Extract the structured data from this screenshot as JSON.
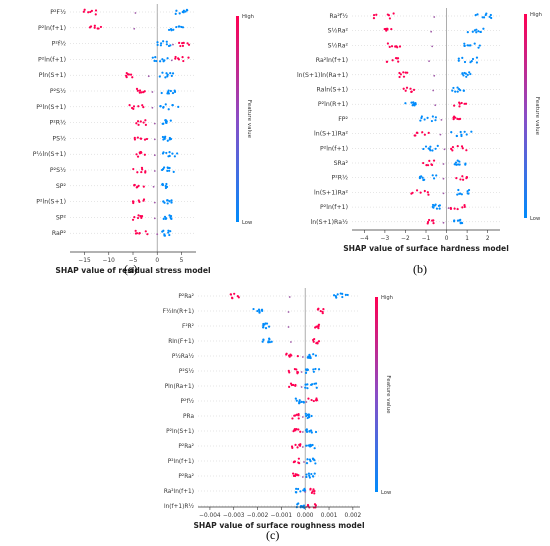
{
  "colors": {
    "high": "#ff0052",
    "low": "#008bfb"
  },
  "chart_data": [
    {
      "type": "scatter",
      "subtype": "shap-beeswarm",
      "panel_label": "(a)",
      "xlabel": "SHAP value of residual stress model",
      "colorbar": {
        "label": "Feature value",
        "high": "High",
        "low": "Low"
      },
      "xlim": [
        -18,
        8
      ],
      "xticks": [
        -15,
        -10,
        -5,
        0,
        5
      ],
      "features": [
        {
          "name": "P²F½",
          "low_range": [
            3.5,
            7.5
          ],
          "high_range": [
            -15.5,
            -12.5
          ]
        },
        {
          "name": "P²ln(f+1)",
          "low_range": [
            2,
            7.5
          ],
          "high_range": [
            -14,
            -11.5
          ]
        },
        {
          "name": "P²f½",
          "low_range": [
            -1,
            3
          ],
          "high_range": [
            4.5,
            7.5
          ]
        },
        {
          "name": "P²ln(f+1)",
          "low_range": [
            -1,
            2.5
          ],
          "high_range": [
            3.5,
            7
          ]
        },
        {
          "name": "Pln(S+1)",
          "low_range": [
            0.5,
            4
          ],
          "high_range": [
            -6.5,
            -4
          ]
        },
        {
          "name": "P²S½",
          "low_range": [
            0.5,
            4
          ],
          "high_range": [
            -5.5,
            -2.5
          ]
        },
        {
          "name": "P²ln(S+1)",
          "low_range": [
            0.5,
            4.5
          ],
          "high_range": [
            -6,
            -2.5
          ]
        },
        {
          "name": "P²R½",
          "low_range": [
            1,
            3
          ],
          "high_range": [
            -5,
            -2
          ]
        },
        {
          "name": "PS½",
          "low_range": [
            1,
            3
          ],
          "high_range": [
            -5,
            -2
          ]
        },
        {
          "name": "P½ln(S+1)",
          "low_range": [
            1,
            4.5
          ],
          "high_range": [
            -5,
            -2
          ]
        },
        {
          "name": "P²S½",
          "low_range": [
            1,
            3.5
          ],
          "high_range": [
            -5,
            -2
          ]
        },
        {
          "name": "SP²",
          "low_range": [
            1,
            2.5
          ],
          "high_range": [
            -5,
            -2.5
          ]
        },
        {
          "name": "P²ln(S+1)",
          "low_range": [
            1,
            3.5
          ],
          "high_range": [
            -5,
            -2
          ]
        },
        {
          "name": "SP²",
          "low_range": [
            1,
            3
          ],
          "high_range": [
            -5,
            -2
          ]
        },
        {
          "name": "RaP²",
          "low_range": [
            1,
            3
          ],
          "high_range": [
            -4.5,
            -1
          ]
        }
      ]
    },
    {
      "type": "scatter",
      "subtype": "shap-beeswarm",
      "panel_label": "(b)",
      "xlabel": "SHAP value of surface hardness model",
      "colorbar": {
        "label": "Feature value",
        "high": "High",
        "low": "Low"
      },
      "xlim": [
        -4.6,
        2.6
      ],
      "xticks": [
        -4,
        -3,
        -2,
        -1,
        0,
        1,
        2
      ],
      "features": [
        {
          "name": "Ra²f½",
          "low_range": [
            1.3,
            2.2
          ],
          "high_range": [
            -4,
            -2.5
          ]
        },
        {
          "name": "S½Ra²",
          "low_range": [
            1,
            1.8
          ],
          "high_range": [
            -3.1,
            -2.5
          ]
        },
        {
          "name": "S½Ra²",
          "low_range": [
            0.8,
            1.7
          ],
          "high_range": [
            -2.9,
            -2.2
          ]
        },
        {
          "name": "Ra²ln(f+1)",
          "low_range": [
            0.5,
            1.5
          ],
          "high_range": [
            -3,
            -2.2
          ]
        },
        {
          "name": "ln(S+1)ln(Ra+1)",
          "low_range": [
            0.7,
            1.3
          ],
          "high_range": [
            -2.4,
            -1.9
          ]
        },
        {
          "name": "Raln(S+1)",
          "low_range": [
            0.2,
            1
          ],
          "high_range": [
            -2.1,
            -1.5
          ]
        },
        {
          "name": "P²ln(R+1)",
          "low_range": [
            -2.1,
            -1.4
          ],
          "high_range": [
            0.3,
            1
          ]
        },
        {
          "name": "FP²",
          "low_range": [
            -1.3,
            -0.5
          ],
          "high_range": [
            0.2,
            0.8
          ]
        },
        {
          "name": "ln(S+1)Ra²",
          "low_range": [
            0.2,
            1.3
          ],
          "high_range": [
            -1.6,
            -0.8
          ]
        },
        {
          "name": "P²ln(f+1)",
          "low_range": [
            -1.2,
            -0.4
          ],
          "high_range": [
            0.2,
            1
          ]
        },
        {
          "name": "SRa²",
          "low_range": [
            0.3,
            1
          ],
          "high_range": [
            -1.3,
            -0.6
          ]
        },
        {
          "name": "P²R½",
          "low_range": [
            -1.3,
            -0.4
          ],
          "high_range": [
            0.3,
            1
          ]
        },
        {
          "name": "ln(S+1)Ra²",
          "low_range": [
            0.5,
            1.2
          ],
          "high_range": [
            -1.8,
            -0.8
          ]
        },
        {
          "name": "P²ln(f+1)",
          "low_range": [
            -0.7,
            -0.3
          ],
          "high_range": [
            0.2,
            0.9
          ]
        },
        {
          "name": "ln(S+1)Ra½",
          "low_range": [
            0.3,
            0.8
          ],
          "high_range": [
            -1.1,
            -0.6
          ]
        }
      ]
    },
    {
      "type": "scatter",
      "subtype": "shap-beeswarm",
      "panel_label": "(c)",
      "xlabel": "SHAP value of surface roughness model",
      "colorbar": {
        "label": "Feature value",
        "high": "High",
        "low": "Low"
      },
      "xlim": [
        -0.0045,
        0.0023
      ],
      "xticks": [
        -0.004,
        -0.003,
        -0.002,
        -0.001,
        0.0,
        0.001,
        0.002
      ],
      "xtick_labels": [
        "−0.004",
        "−0.003",
        "−0.002",
        "−0.001",
        "0.000",
        "0.001",
        "0.002"
      ],
      "features": [
        {
          "name": "P²Ra²",
          "low_range": [
            0.0012,
            0.0018
          ],
          "high_range": [
            -0.0032,
            -0.0025
          ]
        },
        {
          "name": "F½ln(R+1)",
          "low_range": [
            -0.0022,
            -0.0018
          ],
          "high_range": [
            0.0005,
            0.0008
          ]
        },
        {
          "name": "F²R²",
          "low_range": [
            -0.002,
            -0.0015
          ],
          "high_range": [
            0.0004,
            0.0006
          ]
        },
        {
          "name": "Rln(F+1)",
          "low_range": [
            -0.0018,
            -0.0014
          ],
          "high_range": [
            0.0003,
            0.0006
          ]
        },
        {
          "name": "P½Ra½",
          "low_range": [
            0.0001,
            0.0005
          ],
          "high_range": [
            -0.0008,
            -0.0003
          ]
        },
        {
          "name": "P²S½",
          "low_range": [
            0.0,
            0.0006
          ],
          "high_range": [
            -0.0007,
            -0.0003
          ]
        },
        {
          "name": "Pln(Ra+1)",
          "low_range": [
            0.0,
            0.0005
          ],
          "high_range": [
            -0.0007,
            -0.0003
          ]
        },
        {
          "name": "P²f½",
          "low_range": [
            -0.0004,
            0.0
          ],
          "high_range": [
            0.0001,
            0.0005
          ]
        },
        {
          "name": "PRa",
          "low_range": [
            0.0,
            0.0004
          ],
          "high_range": [
            -0.0006,
            -0.0002
          ]
        },
        {
          "name": "P²ln(S+1)",
          "low_range": [
            0.0,
            0.0005
          ],
          "high_range": [
            -0.0006,
            -0.0002
          ]
        },
        {
          "name": "P²Ra²",
          "low_range": [
            0.0,
            0.0004
          ],
          "high_range": [
            -0.0006,
            -0.0002
          ]
        },
        {
          "name": "P²ln(f+1)",
          "low_range": [
            0.0,
            0.0006
          ],
          "high_range": [
            -0.0005,
            -0.0001
          ]
        },
        {
          "name": "P²Ra²",
          "low_range": [
            0.0,
            0.0004
          ],
          "high_range": [
            -0.0006,
            -0.0002
          ]
        },
        {
          "name": "Ra²ln(f+1)",
          "low_range": [
            -0.0004,
            0.0
          ],
          "high_range": [
            0.0001,
            0.0004
          ]
        },
        {
          "name": "ln(f+1)R½",
          "low_range": [
            -0.0004,
            0.0
          ],
          "high_range": [
            0.0001,
            0.0005
          ]
        }
      ]
    }
  ]
}
